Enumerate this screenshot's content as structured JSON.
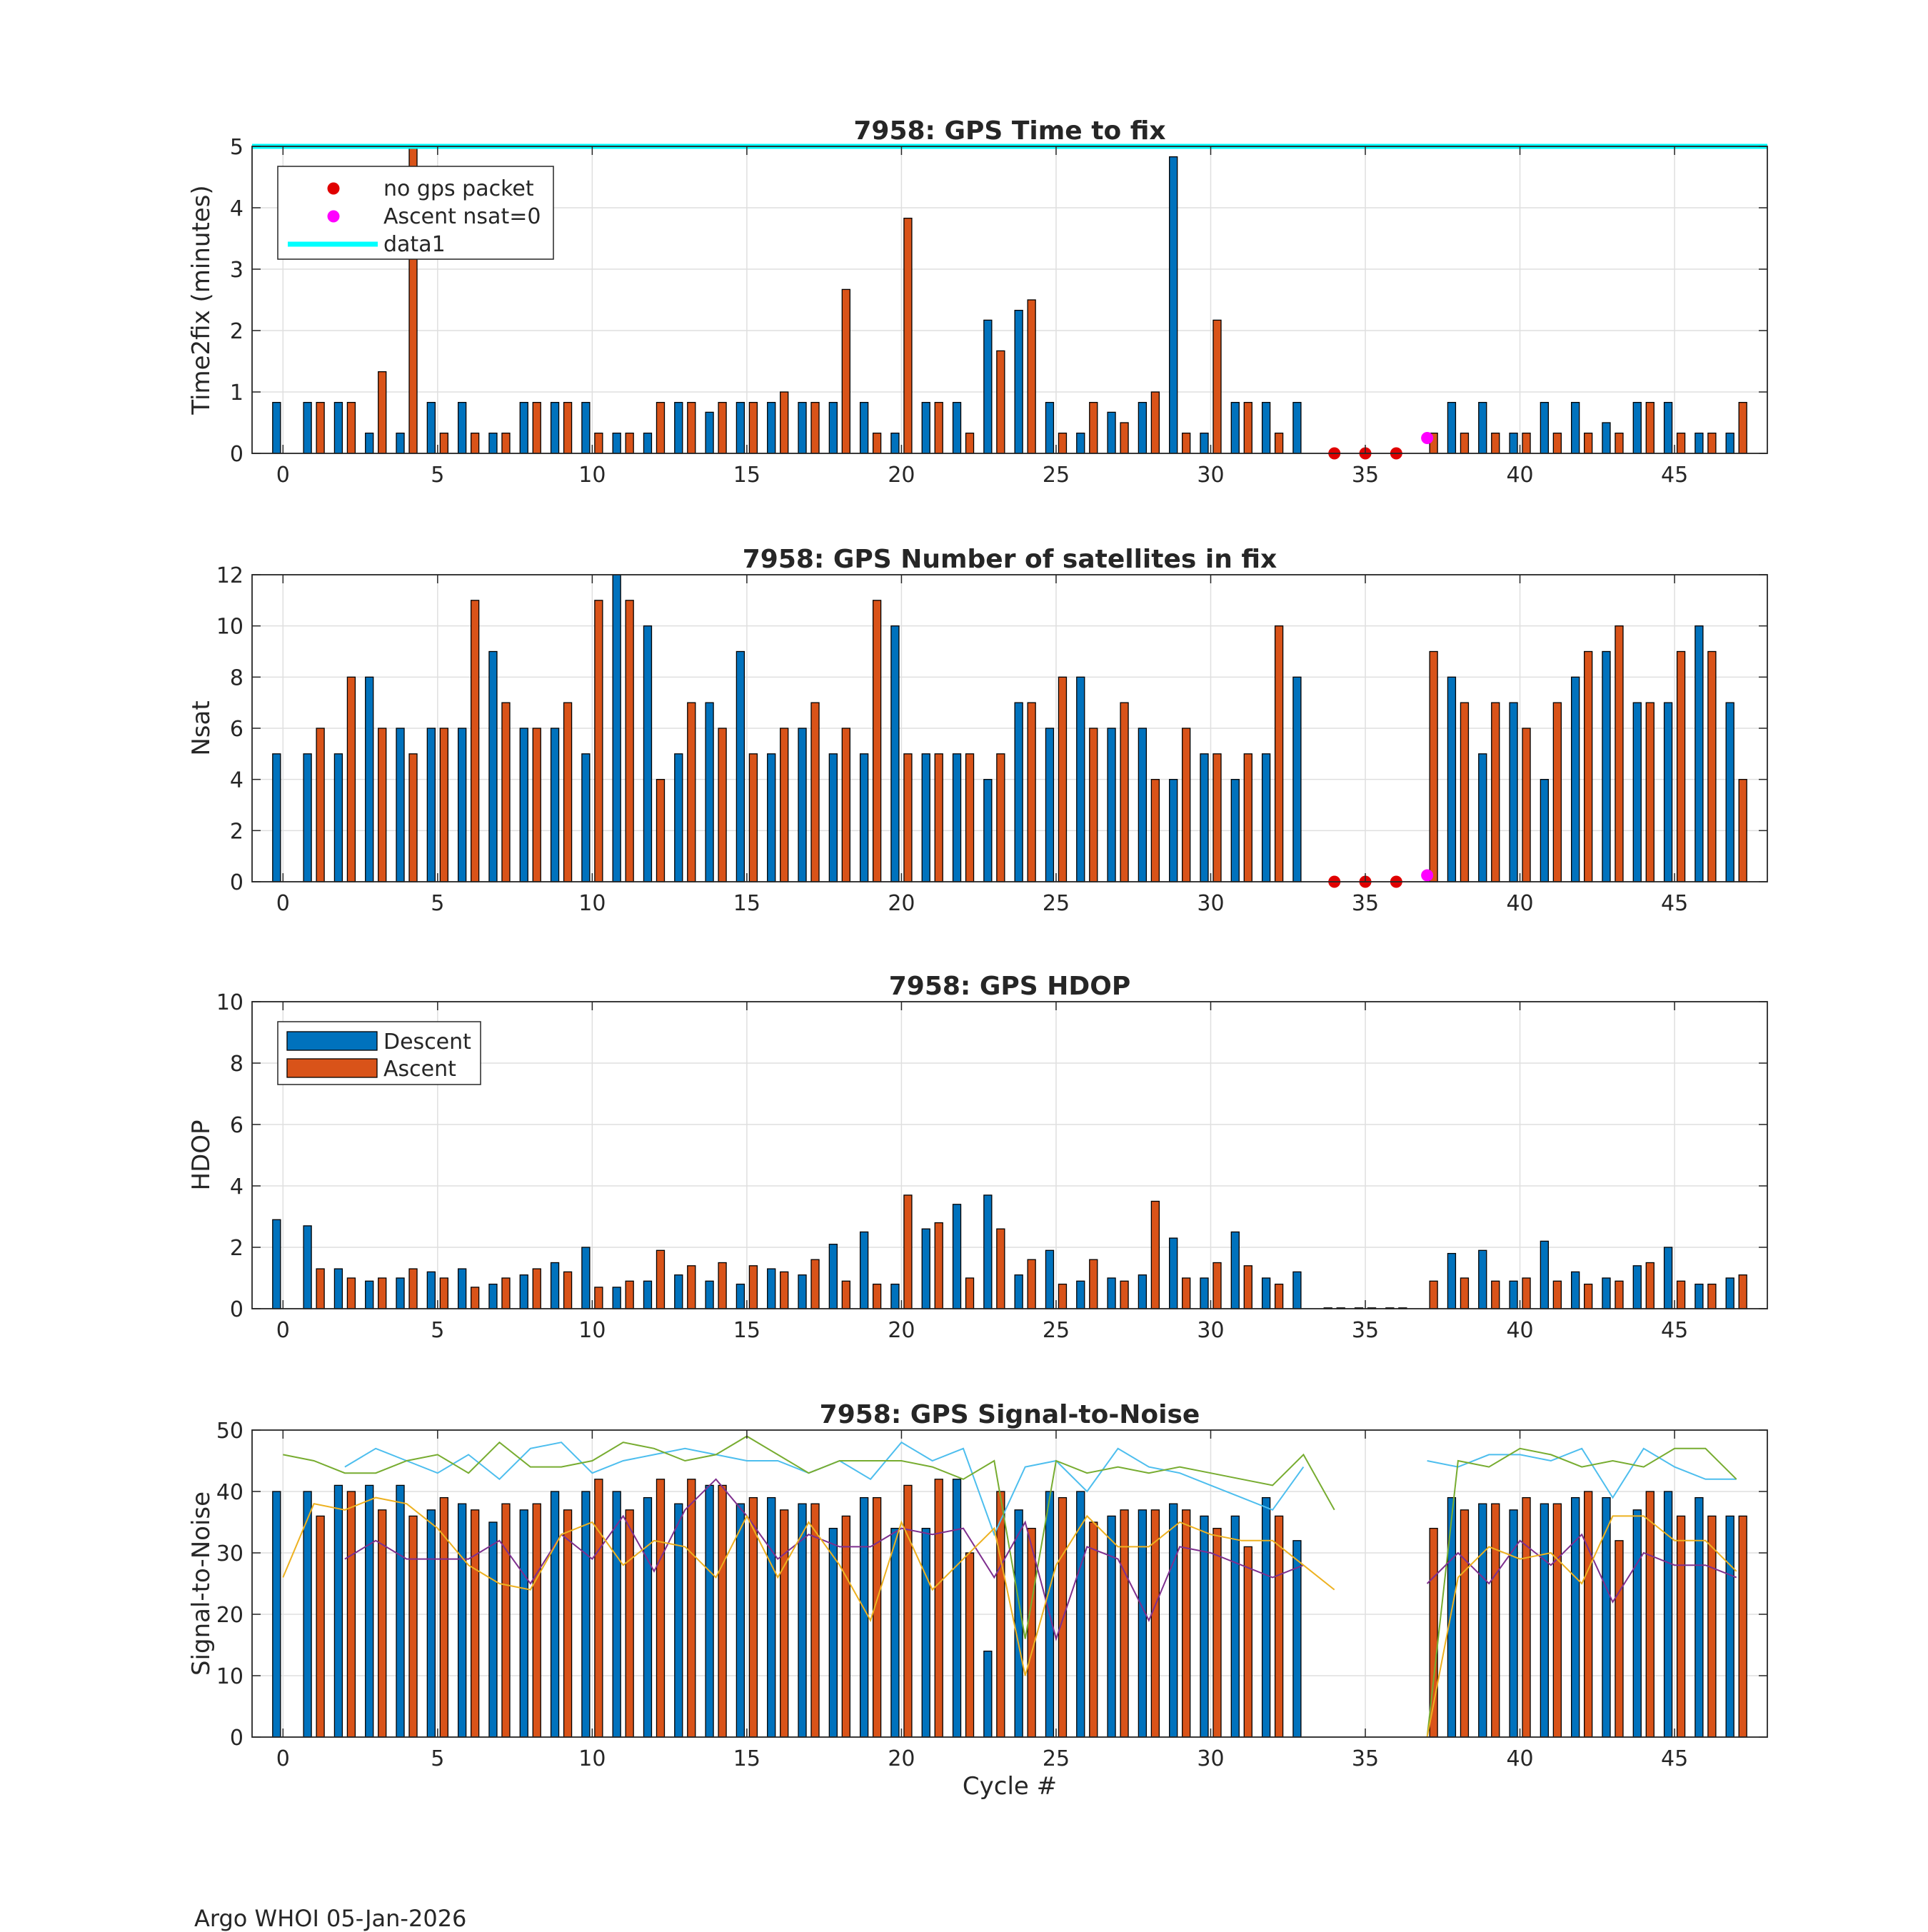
{
  "footer": "Argo WHOI 05-Jan-2026",
  "colors": {
    "descent": "#0072BD",
    "ascent": "#D95319",
    "no_gps": "#E00000",
    "ascent_nsat0": "#FF00FF",
    "data1": "#00FFFF",
    "snr_lines": [
      "#4DBEEE",
      "#77AC30",
      "#7E2F8E",
      "#EDB120"
    ]
  },
  "chart_data": [
    {
      "type": "bar",
      "id": "time",
      "title": "7958: GPS Time to fix",
      "xlabel": "",
      "ylabel": "Time2fix (minutes)",
      "xlim": [
        -1,
        48
      ],
      "ylim": [
        0,
        5
      ],
      "xticks": [
        "0",
        "5",
        "10",
        "15",
        "20",
        "25",
        "30",
        "35",
        "40",
        "45"
      ],
      "yticks": [
        "0",
        "1",
        "2",
        "3",
        "4",
        "5"
      ],
      "grid": true,
      "legend_position": "top-left",
      "legend": [
        "no gps packet",
        "Ascent nsat=0",
        "data1"
      ],
      "reference_line": {
        "name": "data1",
        "y": 5
      },
      "series": [
        {
          "name": "Descent",
          "values": [
            0.83,
            0.83,
            0.83,
            0.33,
            0.33,
            0.83,
            0.83,
            0.33,
            0.83,
            0.83,
            0.83,
            0.33,
            0.33,
            0.83,
            0.67,
            0.83,
            0.83,
            0.83,
            0.83,
            0.83,
            0.33,
            0.83,
            0.83,
            2.17,
            2.33,
            0.83,
            0.33,
            0.67,
            0.83,
            4.83,
            0.33,
            0.83,
            0.83,
            0.83,
            null,
            null,
            null,
            null,
            0.83,
            0.83,
            0.33,
            0.83,
            0.83,
            0.5,
            0.83,
            0.83,
            0.33,
            0.33
          ]
        },
        {
          "name": "Ascent",
          "values": [
            null,
            0.83,
            0.83,
            1.33,
            5.0,
            0.33,
            0.33,
            0.33,
            0.83,
            0.83,
            0.33,
            0.33,
            0.83,
            0.83,
            0.83,
            0.83,
            1.0,
            0.83,
            2.67,
            0.33,
            3.83,
            0.83,
            0.33,
            1.67,
            2.5,
            0.33,
            0.83,
            0.5,
            1.0,
            0.33,
            2.17,
            0.83,
            0.33,
            null,
            null,
            null,
            null,
            0.33,
            0.33,
            0.33,
            0.33,
            0.33,
            0.33,
            0.33,
            0.83,
            0.33,
            0.33,
            0.83
          ]
        }
      ],
      "markers": [
        {
          "name": "no gps packet",
          "x": [
            34,
            35,
            36
          ],
          "y": [
            0,
            0,
            0
          ]
        },
        {
          "name": "Ascent nsat=0",
          "x": [
            37
          ],
          "y": [
            0.25
          ]
        }
      ]
    },
    {
      "type": "bar",
      "id": "nsat",
      "title": "7958: GPS Number of satellites in fix",
      "xlabel": "",
      "ylabel": "Nsat",
      "xlim": [
        -1,
        48
      ],
      "ylim": [
        0,
        12
      ],
      "xticks": [
        "0",
        "5",
        "10",
        "15",
        "20",
        "25",
        "30",
        "35",
        "40",
        "45"
      ],
      "yticks": [
        "0",
        "2",
        "4",
        "6",
        "8",
        "10",
        "12"
      ],
      "grid": true,
      "series": [
        {
          "name": "Descent",
          "values": [
            5,
            5,
            5,
            8,
            6,
            6,
            6,
            9,
            6,
            6,
            5,
            12,
            10,
            5,
            7,
            9,
            5,
            6,
            5,
            5,
            10,
            5,
            5,
            4,
            7,
            6,
            8,
            6,
            6,
            4,
            5,
            4,
            5,
            8,
            null,
            null,
            null,
            null,
            8,
            5,
            7,
            4,
            8,
            9,
            7,
            7,
            10,
            7
          ]
        },
        {
          "name": "Ascent",
          "values": [
            null,
            6,
            8,
            6,
            5,
            6,
            11,
            7,
            6,
            7,
            11,
            11,
            4,
            7,
            6,
            5,
            6,
            7,
            6,
            11,
            5,
            5,
            5,
            5,
            7,
            8,
            6,
            7,
            4,
            6,
            5,
            5,
            10,
            null,
            null,
            null,
            null,
            9,
            7,
            7,
            6,
            7,
            9,
            10,
            7,
            9,
            9,
            4
          ]
        }
      ],
      "markers": [
        {
          "name": "no gps packet",
          "x": [
            34,
            35,
            36
          ],
          "y": [
            0,
            0,
            0
          ]
        },
        {
          "name": "Ascent nsat=0",
          "x": [
            37
          ],
          "y": [
            0.25
          ]
        }
      ]
    },
    {
      "type": "bar",
      "id": "hdop",
      "title": "7958: GPS HDOP",
      "xlabel": "",
      "ylabel": "HDOP",
      "xlim": [
        -1,
        48
      ],
      "ylim": [
        0,
        10
      ],
      "xticks": [
        "0",
        "5",
        "10",
        "15",
        "20",
        "25",
        "30",
        "35",
        "40",
        "45"
      ],
      "yticks": [
        "0",
        "2",
        "4",
        "6",
        "8",
        "10"
      ],
      "grid": true,
      "legend_position": "top-left",
      "legend": [
        "Descent",
        "Ascent"
      ],
      "series": [
        {
          "name": "Descent",
          "values": [
            2.9,
            2.7,
            1.3,
            0.9,
            1.0,
            1.2,
            1.3,
            0.8,
            1.1,
            1.5,
            2.0,
            0.7,
            0.9,
            1.1,
            0.9,
            0.8,
            1.3,
            1.1,
            2.1,
            2.5,
            0.8,
            2.6,
            3.4,
            3.7,
            1.1,
            1.9,
            0.9,
            1.0,
            1.1,
            2.3,
            1.0,
            2.5,
            1.0,
            1.2,
            0.02,
            0.02,
            0.02,
            null,
            1.8,
            1.9,
            0.9,
            2.2,
            1.2,
            1.0,
            1.4,
            2.0,
            0.8,
            1.0
          ]
        },
        {
          "name": "Ascent",
          "values": [
            null,
            1.3,
            1.0,
            1.0,
            1.3,
            1.0,
            0.7,
            1.0,
            1.3,
            1.2,
            0.7,
            0.9,
            1.9,
            1.4,
            1.5,
            1.4,
            1.2,
            1.6,
            0.9,
            0.8,
            3.7,
            2.8,
            1.0,
            2.6,
            1.6,
            0.8,
            1.6,
            0.9,
            3.5,
            1.0,
            1.5,
            1.4,
            0.8,
            null,
            0.02,
            0.02,
            0.02,
            0.9,
            1.0,
            0.9,
            1.0,
            0.9,
            0.8,
            0.9,
            1.5,
            0.9,
            0.8,
            1.1
          ]
        }
      ]
    },
    {
      "type": "bar",
      "id": "snr",
      "title": "7958: GPS Signal-to-Noise",
      "xlabel": "Cycle #",
      "ylabel": "Signal-to-Noise",
      "xlim": [
        -1,
        48
      ],
      "ylim": [
        0,
        50
      ],
      "xticks": [
        "0",
        "5",
        "10",
        "15",
        "20",
        "25",
        "30",
        "35",
        "40",
        "45"
      ],
      "yticks": [
        "0",
        "10",
        "20",
        "30",
        "40",
        "50"
      ],
      "grid": true,
      "series": [
        {
          "name": "Descent",
          "values": [
            40,
            40,
            41,
            41,
            41,
            37,
            38,
            35,
            37,
            40,
            40,
            40,
            39,
            38,
            41,
            38,
            39,
            38,
            34,
            39,
            34,
            34,
            42,
            14,
            37,
            40,
            40,
            36,
            37,
            38,
            36,
            36,
            39,
            32,
            null,
            null,
            null,
            null,
            39,
            38,
            37,
            38,
            39,
            39,
            37,
            40,
            39,
            36
          ]
        },
        {
          "name": "Ascent",
          "values": [
            null,
            36,
            40,
            37,
            36,
            39,
            37,
            38,
            38,
            37,
            42,
            37,
            42,
            42,
            41,
            39,
            37,
            38,
            36,
            39,
            41,
            42,
            30,
            40,
            34,
            39,
            35,
            37,
            37,
            37,
            34,
            31,
            36,
            null,
            null,
            null,
            null,
            34,
            37,
            38,
            39,
            38,
            40,
            32,
            40,
            36,
            36,
            36
          ]
        }
      ],
      "lines": [
        {
          "name": "snr-line-1",
          "values": [
            null,
            null,
            44,
            47,
            45,
            43,
            46,
            42,
            47,
            48,
            43,
            45,
            46,
            47,
            46,
            45,
            45,
            43,
            45,
            42,
            48,
            45,
            47,
            33,
            44,
            45,
            40,
            47,
            44,
            43,
            41,
            39,
            37,
            44,
            null,
            null,
            null,
            45,
            44,
            46,
            46,
            45,
            47,
            39,
            47,
            44,
            42,
            42
          ]
        },
        {
          "name": "snr-line-2",
          "values": [
            46,
            45,
            43,
            43,
            45,
            46,
            43,
            48,
            44,
            44,
            45,
            48,
            47,
            45,
            46,
            49,
            46,
            43,
            45,
            45,
            45,
            44,
            42,
            45,
            16,
            45,
            43,
            44,
            43,
            44,
            43,
            42,
            41,
            46,
            37,
            null,
            null,
            0,
            45,
            44,
            47,
            46,
            44,
            45,
            44,
            47,
            47,
            42
          ]
        },
        {
          "name": "snr-line-3",
          "values": [
            null,
            null,
            29,
            32,
            29,
            29,
            29,
            32,
            25,
            33,
            29,
            36,
            27,
            37,
            42,
            36,
            29,
            33,
            31,
            31,
            34,
            33,
            34,
            26,
            35,
            16,
            31,
            29,
            19,
            31,
            30,
            28,
            26,
            28,
            null,
            null,
            null,
            25,
            30,
            25,
            32,
            28,
            33,
            22,
            30,
            28,
            28,
            26
          ]
        },
        {
          "name": "snr-line-4",
          "values": [
            26,
            38,
            37,
            39,
            38,
            34,
            28,
            25,
            24,
            33,
            35,
            28,
            32,
            31,
            26,
            36,
            26,
            35,
            28,
            19,
            35,
            24,
            29,
            34,
            10,
            28,
            36,
            31,
            31,
            35,
            33,
            32,
            32,
            28,
            24,
            null,
            null,
            0,
            26,
            31,
            29,
            30,
            25,
            36,
            36,
            32,
            32,
            27
          ]
        }
      ]
    }
  ]
}
